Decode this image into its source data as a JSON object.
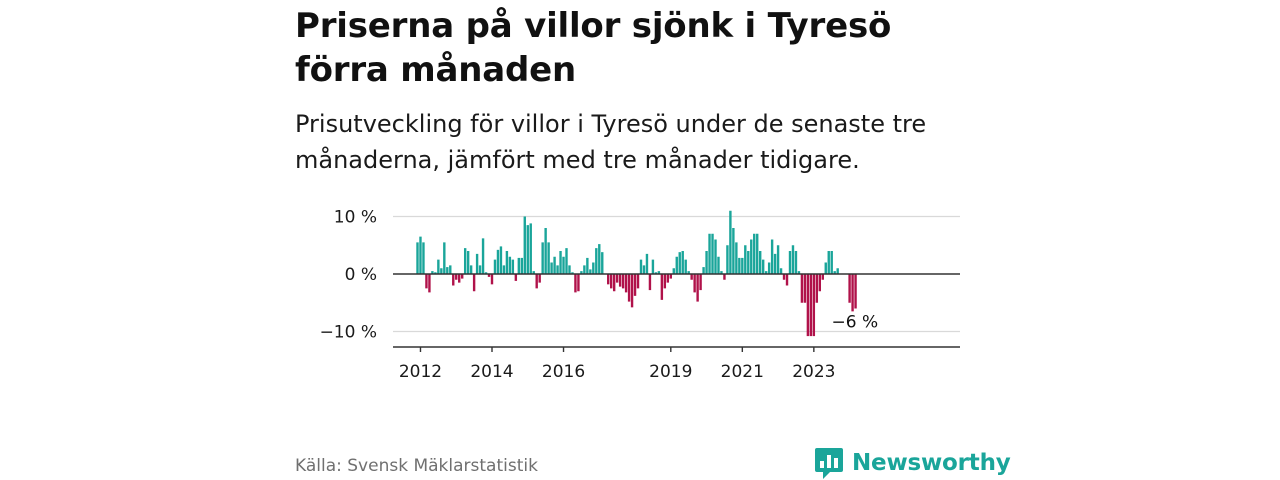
{
  "title": "Priserna på villor sjönk i Tyresö förra månaden",
  "subtitle": "Prisutveckling för villor i Tyresö under de senaste tre månaderna, jämfört med tre månader tidigare.",
  "source": "Källa: Svensk Mäklarstatistik",
  "brand": "Newsworthy",
  "colors": {
    "positive": "#1aa59a",
    "negative": "#b0124a",
    "gridline": "#d9d9d9",
    "zero_line": "#333333",
    "brand": "#1aa59a"
  },
  "chart_data": {
    "type": "bar",
    "title": "Priserna på villor sjönk i Tyresö förra månaden",
    "xlabel": "",
    "ylabel": "",
    "ylim": [
      -12.5,
      10.5
    ],
    "y_ticks": [
      {
        "value": 10,
        "label": "10 %"
      },
      {
        "value": 0,
        "label": "0 %"
      },
      {
        "value": -10,
        "label": "−10 %"
      }
    ],
    "x_ticks": [
      {
        "year": 2012,
        "label": "2012"
      },
      {
        "year": 2014,
        "label": "2014"
      },
      {
        "year": 2016,
        "label": "2016"
      },
      {
        "year": 2019,
        "label": "2019"
      },
      {
        "year": 2021,
        "label": "2021"
      },
      {
        "year": 2023,
        "label": "2023"
      }
    ],
    "start": {
      "year": 2011,
      "month": 12
    },
    "grid": "horizontal",
    "last_value_label": "−6 %",
    "values": [
      5.5,
      6.5,
      5.5,
      -2.5,
      -3.2,
      0.5,
      0.3,
      2.5,
      1.0,
      5.5,
      1.2,
      1.5,
      -2.0,
      -1.0,
      -1.5,
      -0.8,
      4.5,
      4.0,
      1.5,
      -3.0,
      3.5,
      1.5,
      6.2,
      0.3,
      -0.5,
      -1.8,
      2.5,
      4.2,
      4.8,
      1.5,
      4.0,
      3.0,
      2.5,
      -1.2,
      2.8,
      2.8,
      10.0,
      8.5,
      8.8,
      0.5,
      -2.5,
      -1.5,
      5.5,
      8.0,
      5.5,
      2.0,
      3.0,
      1.5,
      4.0,
      3.0,
      4.5,
      1.5,
      0.3,
      -3.2,
      -3.0,
      0.5,
      1.5,
      2.8,
      0.8,
      2.0,
      4.5,
      5.2,
      3.8,
      0.0,
      -1.8,
      -2.5,
      -3.0,
      -1.5,
      -2.2,
      -2.5,
      -3.2,
      -4.8,
      -5.8,
      -3.8,
      -2.5,
      2.5,
      1.5,
      3.5,
      -2.8,
      2.5,
      0.3,
      0.5,
      -4.5,
      -2.5,
      -1.5,
      -0.8,
      1.0,
      3.0,
      3.8,
      4.0,
      2.5,
      0.5,
      -1.0,
      -3.2,
      -4.8,
      -2.8,
      1.2,
      4.0,
      7.0,
      7.0,
      6.0,
      3.0,
      0.5,
      -1.0,
      5.0,
      11.0,
      8.0,
      5.5,
      2.8,
      2.8,
      5.0,
      4.0,
      6.0,
      7.0,
      7.0,
      4.0,
      2.5,
      0.5,
      2.0,
      6.0,
      3.5,
      5.0,
      1.0,
      -1.0,
      -2.0,
      4.0,
      5.0,
      4.0,
      0.5,
      -5.0,
      -5.0,
      -10.8,
      -10.8,
      -10.8,
      -5.0,
      -3.0,
      -1.0,
      2.0,
      4.0,
      4.0,
      0.5,
      1.0,
      0.0,
      0.0,
      0.0,
      -5.0,
      -6.5,
      -6.0
    ]
  }
}
